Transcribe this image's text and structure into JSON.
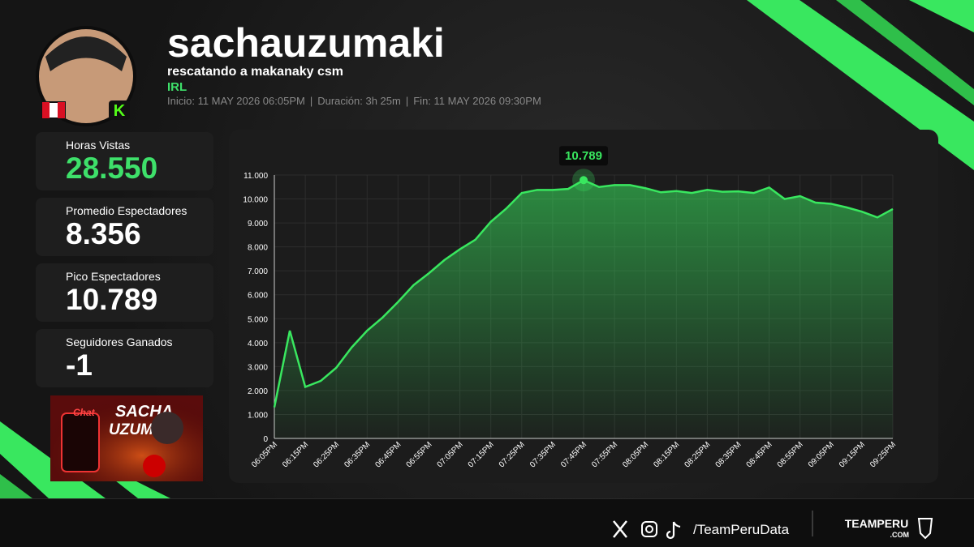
{
  "header": {
    "name": "sachauzumaki",
    "stream_title": "rescatando a makanaky csm",
    "category": "IRL",
    "start": "Inicio: 11 MAY 2026 06:05PM",
    "duration": "Duración: 3h 25m",
    "end": "Fin: 11 MAY 2026 09:30PM"
  },
  "stats": [
    {
      "label": "Horas Vistas",
      "value": "28.550"
    },
    {
      "label": "Promedio Espectadores",
      "value": "8.356"
    },
    {
      "label": "Pico Espectadores",
      "value": "10.789"
    },
    {
      "label": "Seguidores Ganados",
      "value": "-1"
    }
  ],
  "thumbnail": {
    "chat": "Chat",
    "name_top": "SACHA",
    "name_bottom": "UZUMAKI"
  },
  "chart_data": {
    "type": "line",
    "categories": [
      "06:05PM",
      null,
      "06:15PM",
      null,
      "06:25PM",
      null,
      "06:35PM",
      null,
      "06:45PM",
      null,
      "06:55PM",
      null,
      "07:05PM",
      null,
      "07:15PM",
      null,
      "07:25PM",
      null,
      "07:35PM",
      null,
      "07:45PM",
      null,
      "07:55PM",
      null,
      "08:05PM",
      null,
      "08:15PM",
      null,
      "08:25PM",
      null,
      "08:35PM",
      null,
      "08:45PM",
      null,
      "08:55PM",
      null,
      "09:05PM",
      null,
      "09:15PM",
      null,
      "09:25PM"
    ],
    "series": [
      {
        "color": "#39e75f",
        "values": [
          1300,
          4500,
          2150,
          2400,
          2950,
          3800,
          4500,
          5050,
          5700,
          6400,
          6900,
          7450,
          7900,
          8300,
          9050,
          9600,
          10250,
          10380,
          10380,
          10420,
          10789,
          10500,
          10580,
          10580,
          10450,
          10280,
          10330,
          10250,
          10380,
          10300,
          10320,
          10250,
          10480,
          10000,
          10120,
          9850,
          9800,
          9650,
          9470,
          9230,
          9580
        ],
        "value_labels": [
          null,
          null,
          null,
          null,
          null,
          null,
          null,
          null,
          null,
          null,
          null,
          null,
          null,
          null,
          null,
          null,
          null,
          null,
          null,
          null,
          "10.789",
          null,
          null,
          null,
          null,
          null,
          null,
          null,
          null,
          null,
          null,
          null,
          null,
          null,
          null,
          null,
          null,
          null,
          null,
          null,
          null
        ]
      }
    ],
    "ylim": [
      0,
      11000
    ],
    "yticks": [
      0,
      {
        "value": 1000,
        "label": "1.000"
      },
      {
        "value": 2000,
        "label": "2.000"
      },
      {
        "value": 3000,
        "label": "3.000"
      },
      {
        "value": 4000,
        "label": "4.000"
      },
      {
        "value": 5000,
        "label": "5.000"
      },
      {
        "value": 6000,
        "label": "6.000"
      },
      {
        "value": 7000,
        "label": "7.000"
      },
      {
        "value": 8000,
        "label": "8.000"
      },
      {
        "value": 9000,
        "label": "9.000"
      },
      {
        "value": 10000,
        "label": "10.000"
      },
      {
        "value": 11000,
        "label": "11.000"
      }
    ],
    "grid": true
  },
  "footer": {
    "handle": "/TeamPeruData",
    "brand": "TEAMPERU",
    "brand_domain": ".COM"
  }
}
